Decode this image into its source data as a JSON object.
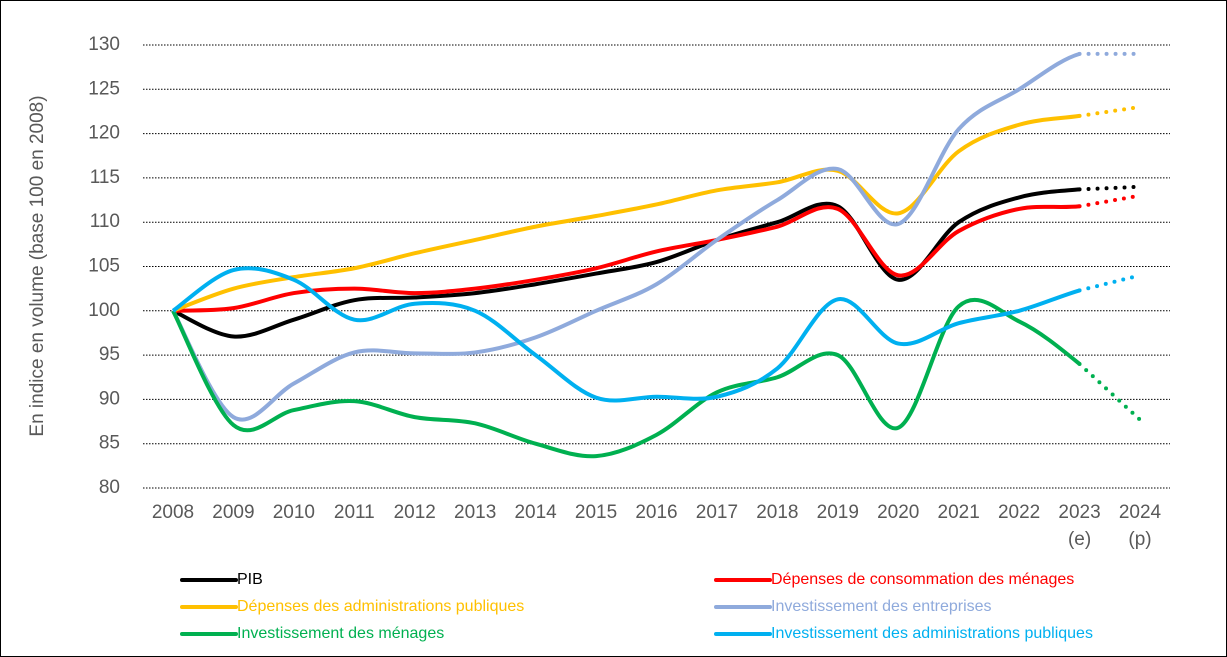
{
  "chart_data": {
    "type": "line",
    "y_label": "En indice en volume (base 100 en 2008)",
    "categories": [
      "2008",
      "2009",
      "2010",
      "2011",
      "2012",
      "2013",
      "2014",
      "2015",
      "2016",
      "2017",
      "2018",
      "2019",
      "2020",
      "2021",
      "2022",
      "2023 (e)",
      "2024 (p)"
    ],
    "series": [
      {
        "name": "PIB",
        "color": "#000000",
        "values": [
          100,
          97.1,
          99,
          101.2,
          101.5,
          102,
          103,
          104.2,
          105.5,
          108,
          110,
          111.8,
          103.5,
          110,
          112.8,
          113.7,
          114
        ]
      },
      {
        "name": "Dépenses de consommation des ménages",
        "color": "#ff0000",
        "values": [
          100,
          100.3,
          102,
          102.5,
          102,
          102.5,
          103.5,
          104.8,
          106.7,
          108,
          109.5,
          111.5,
          104,
          109,
          111.5,
          111.8,
          113
        ]
      },
      {
        "name": "Dépenses des administrations publiques",
        "color": "#ffc000",
        "values": [
          100,
          102.5,
          103.8,
          104.8,
          106.5,
          108,
          109.5,
          110.7,
          112,
          113.6,
          114.5,
          115.8,
          111,
          118,
          121,
          122,
          123
        ]
      },
      {
        "name": "Investissement des entreprises",
        "color": "#8faadc",
        "values": [
          100,
          88,
          91.8,
          95.3,
          95.2,
          95.3,
          97,
          100,
          103,
          108,
          112.5,
          116,
          109.8,
          120.5,
          125,
          129,
          129
        ]
      },
      {
        "name": "Investissement des ménages",
        "color": "#00b050",
        "values": [
          100,
          87.1,
          88.8,
          89.8,
          88,
          87.3,
          85,
          83.6,
          86,
          90.8,
          92.5,
          95,
          86.8,
          100.5,
          98.8,
          94,
          87.7
        ]
      },
      {
        "name": "Investissement des administrations publiques",
        "color": "#00b0f0",
        "values": [
          100,
          104.6,
          103.5,
          99,
          100.8,
          100,
          95,
          90.2,
          90.3,
          90.3,
          93.5,
          101.3,
          96.3,
          98.6,
          100,
          102.3,
          104
        ]
      }
    ],
    "ylim": [
      80,
      130
    ],
    "yticks": [
      80,
      85,
      90,
      95,
      100,
      105,
      110,
      115,
      120,
      125,
      130
    ],
    "grid": true,
    "legend": "bottom"
  }
}
